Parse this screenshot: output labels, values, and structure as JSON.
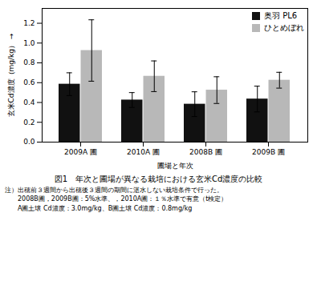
{
  "chart_data": {
    "type": "bar",
    "title": "図1　年次と圃場が異なる栽培における玄米Cd濃度の比較",
    "xlabel": "圃場と年次",
    "ylabel": "玄米Cd濃度（mg/kg）",
    "categories": [
      "2009A 圃",
      "2010A 圃",
      "2008B 圃",
      "2009B 圃"
    ],
    "series": [
      {
        "name": "奥羽 PL6",
        "color": "#111111",
        "values": [
          0.585,
          0.425,
          0.383,
          0.435
        ],
        "errors": [
          0.115,
          0.075,
          0.125,
          0.13
        ]
      },
      {
        "name": "ひとめぼれ",
        "color": "#b8b8b8",
        "values": [
          0.925,
          0.665,
          0.525,
          0.625
        ],
        "errors": [
          0.31,
          0.155,
          0.135,
          0.08
        ]
      }
    ],
    "ylim": [
      0,
      1.35
    ],
    "yticks": [
      {
        "value": 0,
        "label": "0.0"
      },
      0.2,
      0.4,
      0.6,
      0.8,
      {
        "value": 1,
        "label": "1.0"
      },
      1.2
    ],
    "legend": "upper right",
    "grid": false,
    "annotations": [
      "注）出穂前３週間から出穂後３週間の期間に湛水しない栽培条件で行った。",
      "　　2008B圃，2009B圃：5%水準、，2010A圃：１％水準で有意（t検定）",
      "　　A圃土壌 Cd濃度：3.0mg/kg、B圃土壌 Cd濃度：0.8mg/kg"
    ]
  }
}
